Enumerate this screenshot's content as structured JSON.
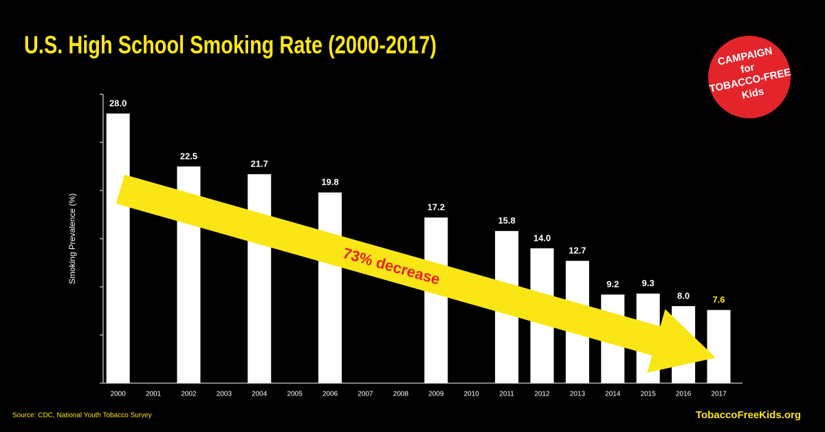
{
  "chart_data": {
    "type": "bar",
    "title": "U.S. High School Smoking Rate (2000-2017)",
    "y_label": "Smoking Prevalence (%)",
    "categories": [
      "2000",
      "2001",
      "2002",
      "2003",
      "2004",
      "2005",
      "2006",
      "2007",
      "2008",
      "2009",
      "2010",
      "2011",
      "2012",
      "2013",
      "2014",
      "2015",
      "2016",
      "2017"
    ],
    "values": [
      28,
      null,
      22.5,
      null,
      21.7,
      null,
      19.8,
      null,
      null,
      17.2,
      null,
      15.8,
      14,
      12.7,
      9.2,
      9.3,
      8,
      7.6
    ],
    "value_labels": [
      "28.0",
      null,
      "22.5",
      null,
      "21.7",
      null,
      "19.8",
      null,
      null,
      "17.2",
      null,
      "15.8",
      "14.0",
      "12.7",
      "9.2",
      "9.3",
      "8.0",
      "7.6"
    ],
    "color": "#ffffff",
    "ylim": [
      0,
      30
    ],
    "yticks": [
      0,
      5,
      10,
      15,
      20,
      25,
      30
    ],
    "annotation": "73% decrease",
    "source": "Source:  CDC, National Youth Tobacco Survey",
    "website": "TobaccoFreeKids.org",
    "logo": [
      "CAMPAIGN",
      "for",
      "TOBACCO-FREE",
      "Kids"
    ]
  }
}
